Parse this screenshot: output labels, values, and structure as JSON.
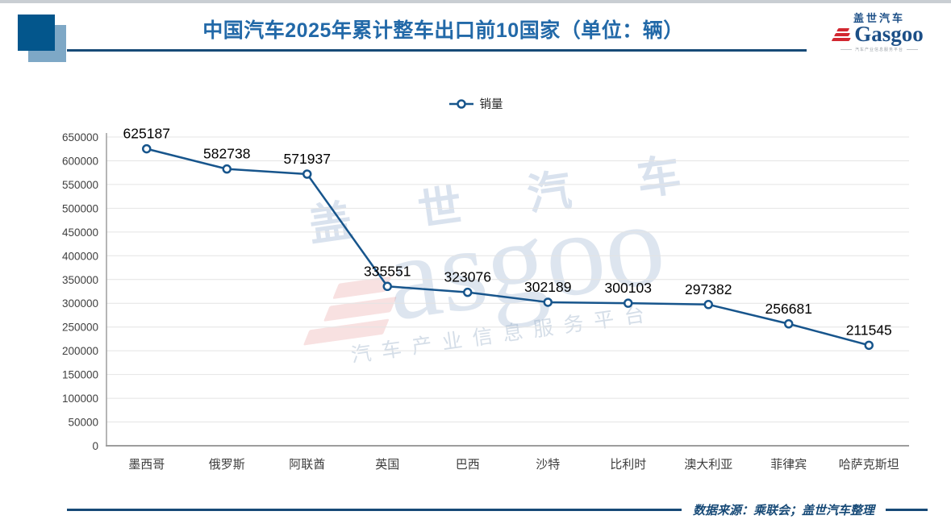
{
  "page": {
    "title": "中国汽车2025年累计整车出口前10国家（单位：辆）"
  },
  "logo": {
    "cn": "盖世汽车",
    "en": "asgoo",
    "initial": "G",
    "sub": "汽车产业信息服务平台"
  },
  "legend": {
    "label": "销量"
  },
  "chart_data": {
    "type": "line",
    "title": "中国汽车2025年累计整车出口前10国家（单位：辆）",
    "categories": [
      "墨西哥",
      "俄罗斯",
      "阿联酋",
      "英国",
      "巴西",
      "沙特",
      "比利时",
      "澳大利亚",
      "菲律宾",
      "哈萨克斯坦"
    ],
    "series": [
      {
        "name": "销量",
        "values": [
          625187,
          582738,
          571937,
          335551,
          323076,
          302189,
          300103,
          297382,
          256681,
          211545
        ]
      }
    ],
    "xlabel": "",
    "ylabel": "",
    "ylim": [
      0,
      650000
    ],
    "ytick_step": 50000,
    "grid": true,
    "legend_position": "top",
    "data_labels": true
  },
  "watermark": {
    "cn": "盖 世 汽 车",
    "en": "asgoo",
    "sub": "汽车产业信息服务平台"
  },
  "footer": {
    "source": "数据来源：乘联会；盖世汽车整理"
  },
  "colors": {
    "title": "#2269a8",
    "line": "#17558c",
    "navy": "#174a77",
    "grid": "#e4e4e4",
    "axis": "#9d9d9d",
    "square_dark": "#03568c",
    "square_light": "#7ea8c6",
    "logo_red": "#d22730",
    "logo_blue": "#1c4f87"
  }
}
